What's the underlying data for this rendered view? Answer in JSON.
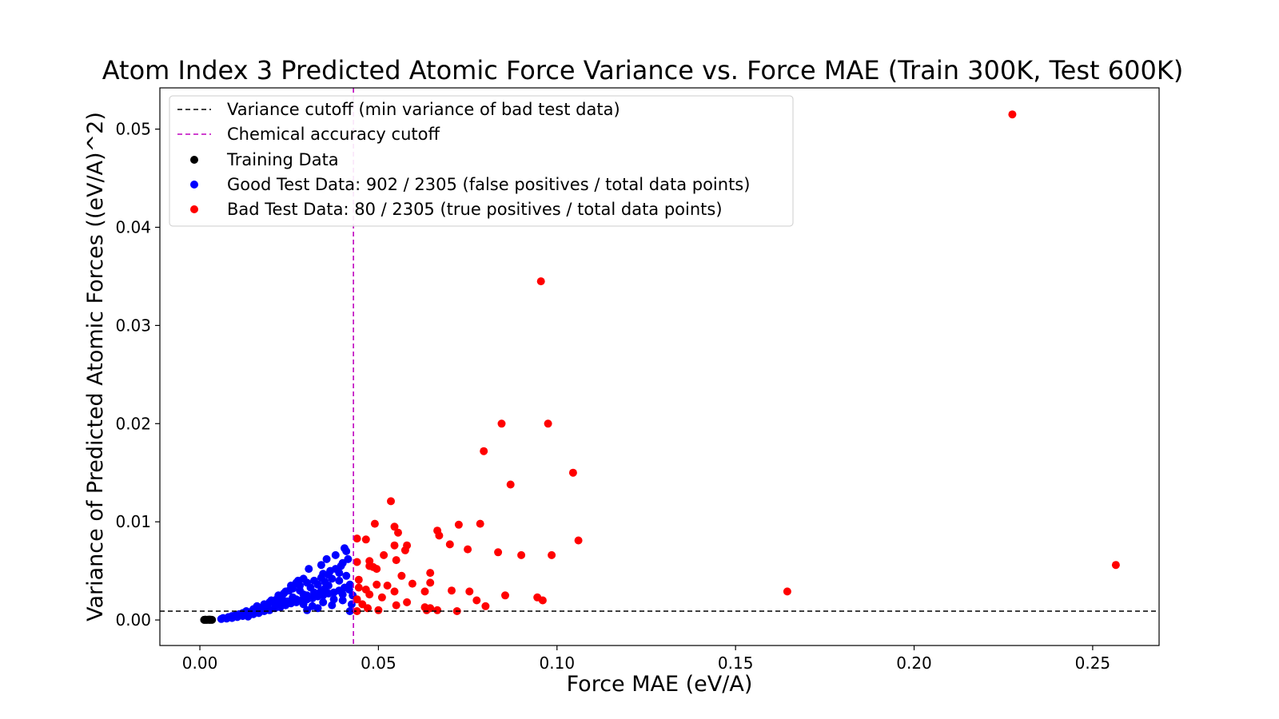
{
  "chart_data": {
    "type": "scatter",
    "title": "Atom Index 3 Predicted Atomic Force Variance vs. Force MAE (Train 300K, Test 600K)",
    "xlabel": "Force MAE (eV/A)",
    "ylabel": "Variance of Predicted Atomic Forces ((eV/A)^2)",
    "xlim": [
      -0.0112,
      0.2686
    ],
    "ylim": [
      -0.0026,
      0.0542
    ],
    "xticks": [
      0.0,
      0.05,
      0.1,
      0.15,
      0.2,
      0.25
    ],
    "xtick_labels": [
      "0.00",
      "0.05",
      "0.10",
      "0.15",
      "0.20",
      "0.25"
    ],
    "yticks": [
      0.0,
      0.01,
      0.02,
      0.03,
      0.04,
      0.05
    ],
    "ytick_labels": [
      "0.00",
      "0.01",
      "0.02",
      "0.03",
      "0.04",
      "0.05"
    ],
    "grid": false,
    "legend_position": "upper-left",
    "reference_lines": [
      {
        "orientation": "horizontal",
        "value": 0.0009,
        "label": "Variance cutoff (min variance of bad test data)",
        "color": "#000000",
        "style": "dashed"
      },
      {
        "orientation": "vertical",
        "value": 0.043,
        "label": "Chemical accuracy cutoff",
        "color": "#bf00bf",
        "style": "dashed"
      }
    ],
    "series": [
      {
        "name": "Training Data",
        "color": "#000000",
        "points": [
          [
            0.0012,
            1e-05
          ],
          [
            0.0016,
            2e-05
          ],
          [
            0.0019,
            1e-05
          ],
          [
            0.0022,
            3e-05
          ],
          [
            0.0025,
            2e-05
          ],
          [
            0.0028,
            1e-05
          ],
          [
            0.0031,
            2e-05
          ],
          [
            0.0034,
            1e-05
          ],
          [
            0.0015,
            3e-05
          ],
          [
            0.0027,
            4e-05
          ]
        ]
      },
      {
        "name": "Good Test Data: 902 / 2305 (false positives / total data points)",
        "color": "#0000ff",
        "points": [
          [
            0.006,
            0.0001
          ],
          [
            0.0075,
            0.00015
          ],
          [
            0.009,
            0.0002
          ],
          [
            0.0105,
            0.0003
          ],
          [
            0.012,
            0.0004
          ],
          [
            0.0135,
            0.00035
          ],
          [
            0.015,
            0.0006
          ],
          [
            0.0165,
            0.0007
          ],
          [
            0.018,
            0.0009
          ],
          [
            0.0195,
            0.001
          ],
          [
            0.021,
            0.0012
          ],
          [
            0.0225,
            0.0013
          ],
          [
            0.024,
            0.0015
          ],
          [
            0.0255,
            0.0017
          ],
          [
            0.027,
            0.0018
          ],
          [
            0.0285,
            0.002
          ],
          [
            0.03,
            0.0021
          ],
          [
            0.0315,
            0.0022
          ],
          [
            0.033,
            0.0024
          ],
          [
            0.0345,
            0.0025
          ],
          [
            0.036,
            0.0027
          ],
          [
            0.0375,
            0.0028
          ],
          [
            0.039,
            0.003
          ],
          [
            0.0405,
            0.0033
          ],
          [
            0.042,
            0.0036
          ],
          [
            0.015,
            0.0011
          ],
          [
            0.018,
            0.0016
          ],
          [
            0.02,
            0.002
          ],
          [
            0.022,
            0.0025
          ],
          [
            0.024,
            0.0029
          ],
          [
            0.026,
            0.0032
          ],
          [
            0.028,
            0.0035
          ],
          [
            0.03,
            0.0038
          ],
          [
            0.032,
            0.004
          ],
          [
            0.034,
            0.0043
          ],
          [
            0.036,
            0.0046
          ],
          [
            0.038,
            0.0052
          ],
          [
            0.04,
            0.0058
          ],
          [
            0.0415,
            0.0062
          ],
          [
            0.041,
            0.007
          ],
          [
            0.0405,
            0.0073
          ],
          [
            0.038,
            0.0066
          ],
          [
            0.0355,
            0.0062
          ],
          [
            0.034,
            0.0056
          ],
          [
            0.0305,
            0.0052
          ],
          [
            0.027,
            0.0038
          ],
          [
            0.025,
            0.003
          ],
          [
            0.023,
            0.0022
          ],
          [
            0.021,
            0.0017
          ],
          [
            0.019,
            0.0014
          ],
          [
            0.017,
            0.0012
          ],
          [
            0.014,
            0.0008
          ],
          [
            0.012,
            0.0007
          ],
          [
            0.01,
            0.0005
          ],
          [
            0.008,
            0.0003
          ],
          [
            0.0065,
            0.0002
          ],
          [
            0.03,
            0.001
          ],
          [
            0.033,
            0.0012
          ],
          [
            0.037,
            0.0015
          ],
          [
            0.04,
            0.002
          ],
          [
            0.042,
            0.0009
          ],
          [
            0.0425,
            0.0016
          ],
          [
            0.0428,
            0.0025
          ],
          [
            0.041,
            0.0045
          ],
          [
            0.039,
            0.004
          ],
          [
            0.035,
            0.0032
          ],
          [
            0.032,
            0.0028
          ],
          [
            0.029,
            0.0026
          ],
          [
            0.026,
            0.0023
          ],
          [
            0.028,
            0.003
          ],
          [
            0.031,
            0.0033
          ],
          [
            0.033,
            0.0036
          ],
          [
            0.035,
            0.0039
          ],
          [
            0.037,
            0.0042
          ],
          [
            0.039,
            0.0048
          ],
          [
            0.0395,
            0.0055
          ],
          [
            0.0365,
            0.005
          ],
          [
            0.0345,
            0.0047
          ],
          [
            0.029,
            0.0042
          ],
          [
            0.0275,
            0.004
          ],
          [
            0.0255,
            0.0035
          ],
          [
            0.0235,
            0.0027
          ],
          [
            0.0215,
            0.0021
          ],
          [
            0.0195,
            0.0018
          ],
          [
            0.016,
            0.0014
          ],
          [
            0.013,
            0.0009
          ],
          [
            0.011,
            0.0006
          ],
          [
            0.009,
            0.0004
          ],
          [
            0.029,
            0.0016
          ],
          [
            0.0315,
            0.0014
          ],
          [
            0.0345,
            0.0018
          ],
          [
            0.0375,
            0.0021
          ],
          [
            0.04,
            0.0026
          ],
          [
            0.0418,
            0.0031
          ],
          [
            0.036,
            0.0035
          ],
          [
            0.034,
            0.003
          ],
          [
            0.03,
            0.0025
          ],
          [
            0.027,
            0.0021
          ],
          [
            0.0245,
            0.0019
          ],
          [
            0.0225,
            0.0017
          ]
        ]
      },
      {
        "name": "Bad Test Data: 80 / 2305 (true positives / total data points)",
        "color": "#ff0000",
        "points": [
          [
            0.2275,
            0.0515
          ],
          [
            0.0955,
            0.0345
          ],
          [
            0.0845,
            0.02
          ],
          [
            0.0975,
            0.02
          ],
          [
            0.0795,
            0.0172
          ],
          [
            0.1045,
            0.015
          ],
          [
            0.087,
            0.0138
          ],
          [
            0.0535,
            0.0121
          ],
          [
            0.049,
            0.0098
          ],
          [
            0.0545,
            0.0095
          ],
          [
            0.0725,
            0.0097
          ],
          [
            0.0785,
            0.0098
          ],
          [
            0.0555,
            0.0089
          ],
          [
            0.0665,
            0.0091
          ],
          [
            0.067,
            0.0086
          ],
          [
            0.044,
            0.0083
          ],
          [
            0.0465,
            0.0082
          ],
          [
            0.106,
            0.0081
          ],
          [
            0.0545,
            0.0076
          ],
          [
            0.058,
            0.0076
          ],
          [
            0.07,
            0.0077
          ],
          [
            0.075,
            0.0072
          ],
          [
            0.0575,
            0.0071
          ],
          [
            0.0835,
            0.0069
          ],
          [
            0.09,
            0.0066
          ],
          [
            0.0985,
            0.0066
          ],
          [
            0.0515,
            0.0066
          ],
          [
            0.055,
            0.0061
          ],
          [
            0.0475,
            0.006
          ],
          [
            0.044,
            0.0059
          ],
          [
            0.0475,
            0.0055
          ],
          [
            0.0495,
            0.0052
          ],
          [
            0.0485,
            0.0054
          ],
          [
            0.0565,
            0.0045
          ],
          [
            0.0445,
            0.0041
          ],
          [
            0.0645,
            0.0048
          ],
          [
            0.0495,
            0.0036
          ],
          [
            0.0525,
            0.0035
          ],
          [
            0.0595,
            0.0037
          ],
          [
            0.0645,
            0.0038
          ],
          [
            0.0445,
            0.0033
          ],
          [
            0.0465,
            0.0031
          ],
          [
            0.0545,
            0.0029
          ],
          [
            0.063,
            0.0029
          ],
          [
            0.0705,
            0.003
          ],
          [
            0.0755,
            0.0029
          ],
          [
            0.0855,
            0.0025
          ],
          [
            0.0475,
            0.0026
          ],
          [
            0.051,
            0.0023
          ],
          [
            0.044,
            0.0021
          ],
          [
            0.0945,
            0.0023
          ],
          [
            0.096,
            0.002
          ],
          [
            0.0775,
            0.002
          ],
          [
            0.058,
            0.0018
          ],
          [
            0.0455,
            0.0016
          ],
          [
            0.055,
            0.0015
          ],
          [
            0.063,
            0.0013
          ],
          [
            0.0645,
            0.0012
          ],
          [
            0.0665,
            0.001
          ],
          [
            0.072,
            0.0009
          ],
          [
            0.08,
            0.0014
          ],
          [
            0.047,
            0.0012
          ],
          [
            0.05,
            0.001
          ],
          [
            0.044,
            0.0009
          ],
          [
            0.0635,
            0.001
          ],
          [
            0.1645,
            0.0029
          ],
          [
            0.2565,
            0.0056
          ]
        ]
      }
    ]
  }
}
